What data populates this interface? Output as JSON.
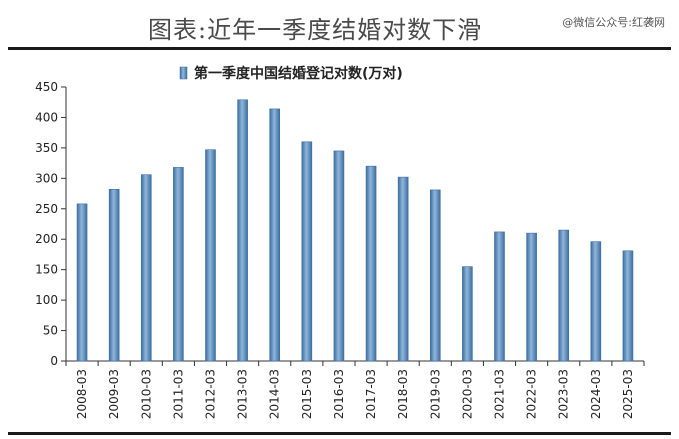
{
  "header": {
    "title": "图表:近年一季度结婚对数下滑",
    "watermark": "@微信公众号:红袭网"
  },
  "chart_data": {
    "type": "bar",
    "title": "",
    "xlabel": "",
    "ylabel": "",
    "ylim": [
      0,
      450
    ],
    "yticks": [
      0,
      50,
      100,
      150,
      200,
      250,
      300,
      350,
      400,
      450
    ],
    "grid": false,
    "legend_position": "top-center",
    "bar_color": "#5b8fc0",
    "series": [
      {
        "name": "第一季度中国结婚登记对数(万对)",
        "values": [
          258,
          282,
          306,
          318,
          347,
          429,
          414,
          360,
          345,
          320,
          302,
          281,
          155,
          212,
          210,
          215,
          196,
          181
        ]
      }
    ],
    "categories": [
      "2008-03",
      "2009-03",
      "2010-03",
      "2011-03",
      "2012-03",
      "2013-03",
      "2014-03",
      "2015-03",
      "2016-03",
      "2017-03",
      "2018-03",
      "2019-03",
      "2020-03",
      "2021-03",
      "2022-03",
      "2023-03",
      "2024-03",
      "2025-03"
    ]
  }
}
